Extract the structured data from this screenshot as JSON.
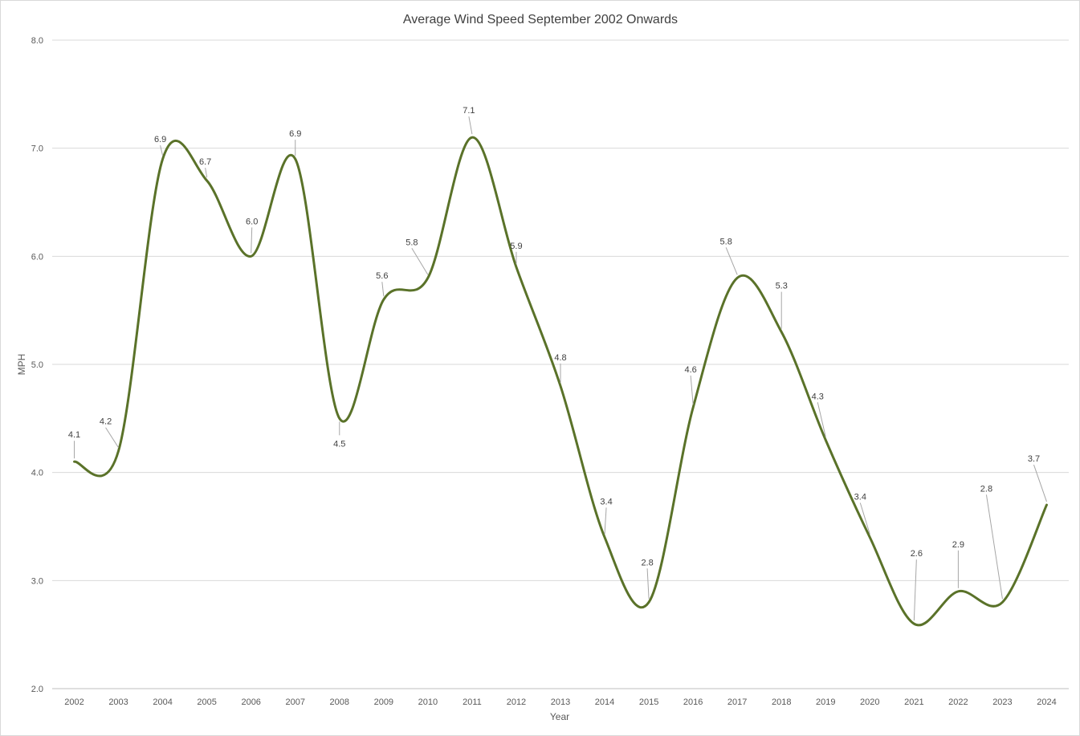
{
  "chart_data": {
    "type": "line",
    "title": "Average Wind Speed September 2002 Onwards",
    "xlabel": "Year",
    "ylabel": "MPH",
    "ylim": [
      2.0,
      8.0
    ],
    "y_ticks": [
      "2.0",
      "3.0",
      "4.0",
      "5.0",
      "6.0",
      "7.0",
      "8.0"
    ],
    "grid": true,
    "legend": "none",
    "smoothed": true,
    "categories": [
      "2002",
      "2003",
      "2004",
      "2005",
      "2006",
      "2007",
      "2008",
      "2009",
      "2010",
      "2011",
      "2012",
      "2013",
      "2014",
      "2015",
      "2016",
      "2017",
      "2018",
      "2019",
      "2020",
      "2021",
      "2022",
      "2023",
      "2024"
    ],
    "series": [
      {
        "color": "#5a7229",
        "values": [
          4.1,
          4.2,
          6.9,
          6.7,
          6.0,
          6.9,
          4.5,
          5.6,
          5.8,
          7.1,
          5.9,
          4.8,
          3.4,
          2.8,
          4.6,
          5.8,
          5.3,
          4.3,
          3.4,
          2.6,
          2.9,
          2.8,
          3.7
        ],
        "labels": [
          "4.1",
          "4.2",
          "6.9",
          "6.7",
          "6.0",
          "6.9",
          "4.5",
          "5.6",
          "5.8",
          "7.1",
          "5.9",
          "4.8",
          "3.4",
          "2.8",
          "4.6",
          "5.8",
          "5.3",
          "4.3",
          "3.4",
          "2.6",
          "2.9",
          "2.8",
          "3.7"
        ]
      }
    ],
    "colors": {
      "grid": "#d9d9d9",
      "text": "#595959",
      "leader": "#a6a6a6"
    }
  }
}
